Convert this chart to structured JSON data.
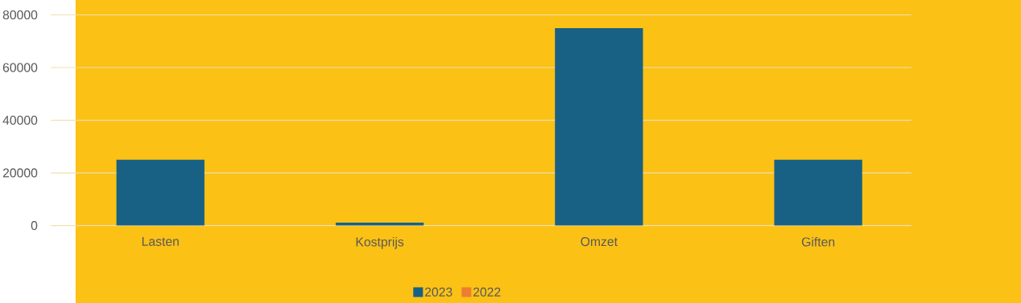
{
  "chart_data": {
    "type": "bar",
    "categories": [
      "Lasten",
      "Kostprijs",
      "Omzet",
      "Giften"
    ],
    "series": [
      {
        "name": "2023",
        "color": "#186184",
        "values": [
          25000,
          1100,
          75000,
          25000
        ]
      },
      {
        "name": "2022",
        "color": "#ED7D31",
        "values": [
          null,
          null,
          null,
          null
        ]
      }
    ],
    "ylim": [
      0,
      80000
    ],
    "yticks": [
      0,
      20000,
      40000,
      60000,
      80000
    ],
    "grid": "y",
    "legend": "bottom"
  }
}
